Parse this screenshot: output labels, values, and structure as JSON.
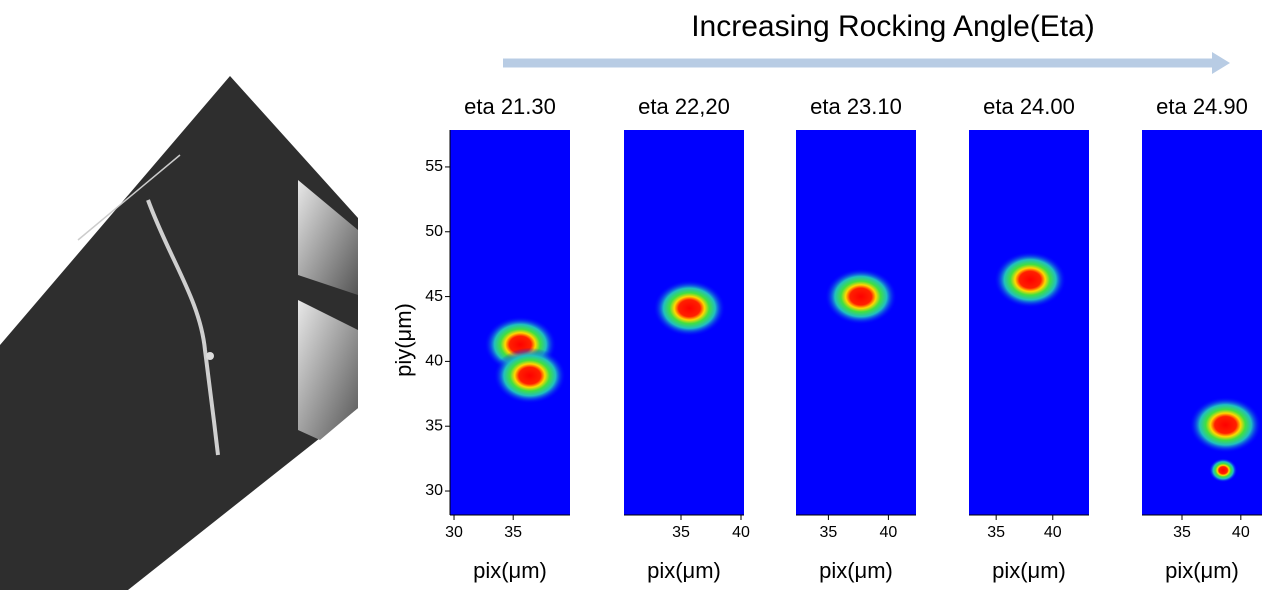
{
  "header": {
    "title": "Increasing Rocking Angle(Eta)"
  },
  "chart_data": [
    {
      "type": "heatmap",
      "title": "eta 21.30",
      "xlabel": "pix(μm)",
      "ylabel": "piy(μm)",
      "xlim": [
        29.66,
        39.8
      ],
      "xticks": [
        30,
        35
      ],
      "ylim": [
        28.15,
        57.85
      ],
      "yticks": [
        30,
        35,
        40,
        45,
        50,
        55
      ],
      "spots": {
        "x": [
          35.6,
          36.4
        ],
        "y": [
          41.3,
          38.9
        ]
      }
    },
    {
      "type": "heatmap",
      "title": "eta 22,20",
      "xlabel": "pix(μm)",
      "xlim": [
        30.25,
        40.25
      ],
      "xticks": [
        35,
        40
      ],
      "ylim": [
        28.15,
        57.85
      ],
      "spots": {
        "x": [
          35.7
        ],
        "y": [
          44.1
        ]
      }
    },
    {
      "type": "heatmap",
      "title": "eta 23.10",
      "xlabel": "pix(μm)",
      "xlim": [
        32.3,
        42.3
      ],
      "xticks": [
        35,
        40
      ],
      "ylim": [
        28.15,
        57.85
      ],
      "spots": {
        "x": [
          37.7
        ],
        "y": [
          45.0
        ]
      }
    },
    {
      "type": "heatmap",
      "title": "eta 24.00",
      "xlabel": "pix(μm)",
      "xlim": [
        32.6,
        43.2
      ],
      "xticks": [
        35,
        40
      ],
      "ylim": [
        28.15,
        57.85
      ],
      "spots": {
        "x": [
          38.0
        ],
        "y": [
          46.3
        ]
      }
    },
    {
      "type": "heatmap",
      "title": "eta 24.90",
      "xlabel": "pix(μm)",
      "xlim": [
        31.6,
        41.8
      ],
      "xticks": [
        35,
        40
      ],
      "ylim": [
        28.15,
        57.85
      ],
      "spots": {
        "x": [
          38.7,
          38.5
        ],
        "y": [
          35.1,
          31.6
        ]
      }
    }
  ]
}
